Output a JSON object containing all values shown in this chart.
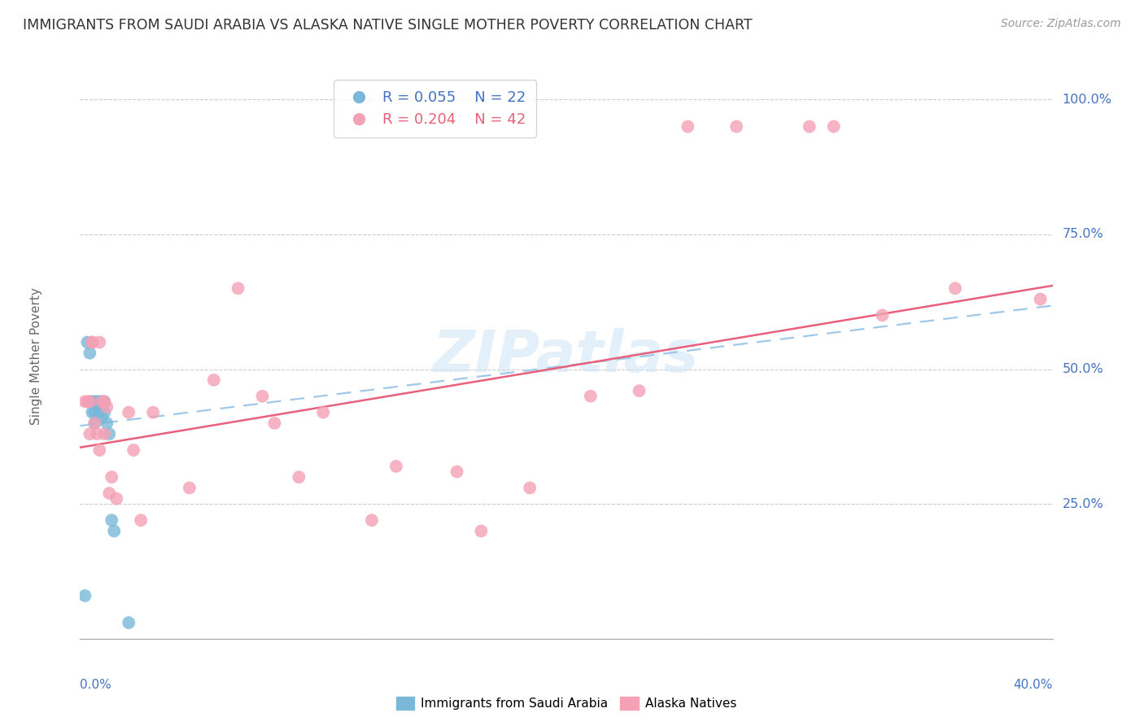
{
  "title": "IMMIGRANTS FROM SAUDI ARABIA VS ALASKA NATIVE SINGLE MOTHER POVERTY CORRELATION CHART",
  "source": "Source: ZipAtlas.com",
  "ylabel": "Single Mother Poverty",
  "yticks": [
    0.0,
    0.25,
    0.5,
    0.75,
    1.0
  ],
  "ytick_labels": [
    "",
    "25.0%",
    "50.0%",
    "75.0%",
    "100.0%"
  ],
  "xlim": [
    0.0,
    0.4
  ],
  "ylim": [
    0.0,
    1.05
  ],
  "legend_r1": "R = 0.055",
  "legend_n1": "N = 22",
  "legend_r2": "R = 0.204",
  "legend_n2": "N = 42",
  "color_blue": "#7ab8d9",
  "color_pink": "#f4a0b5",
  "line_color_blue": "#a0c8e8",
  "line_color_pink": "#e8607a",
  "watermark": "ZIPatlas",
  "saudi_x": [
    0.002,
    0.003,
    0.004,
    0.004,
    0.005,
    0.005,
    0.006,
    0.006,
    0.006,
    0.007,
    0.007,
    0.008,
    0.008,
    0.009,
    0.009,
    0.01,
    0.01,
    0.011,
    0.012,
    0.013,
    0.014,
    0.02
  ],
  "saudi_y": [
    0.08,
    0.55,
    0.53,
    0.44,
    0.44,
    0.42,
    0.44,
    0.42,
    0.4,
    0.44,
    0.43,
    0.44,
    0.42,
    0.44,
    0.41,
    0.44,
    0.42,
    0.4,
    0.38,
    0.22,
    0.2,
    0.03
  ],
  "alaska_x": [
    0.002,
    0.003,
    0.004,
    0.004,
    0.005,
    0.005,
    0.006,
    0.007,
    0.008,
    0.008,
    0.009,
    0.01,
    0.01,
    0.011,
    0.012,
    0.013,
    0.015,
    0.02,
    0.022,
    0.025,
    0.03,
    0.045,
    0.055,
    0.065,
    0.075,
    0.08,
    0.09,
    0.1,
    0.12,
    0.13,
    0.155,
    0.165,
    0.185,
    0.21,
    0.23,
    0.25,
    0.27,
    0.3,
    0.31,
    0.33,
    0.36,
    0.395
  ],
  "alaska_y": [
    0.44,
    0.44,
    0.44,
    0.38,
    0.55,
    0.55,
    0.4,
    0.38,
    0.35,
    0.55,
    0.44,
    0.38,
    0.44,
    0.43,
    0.27,
    0.3,
    0.26,
    0.42,
    0.35,
    0.22,
    0.42,
    0.28,
    0.48,
    0.65,
    0.45,
    0.4,
    0.3,
    0.42,
    0.22,
    0.32,
    0.31,
    0.2,
    0.28,
    0.45,
    0.46,
    0.95,
    0.95,
    0.95,
    0.95,
    0.6,
    0.65,
    0.63
  ]
}
